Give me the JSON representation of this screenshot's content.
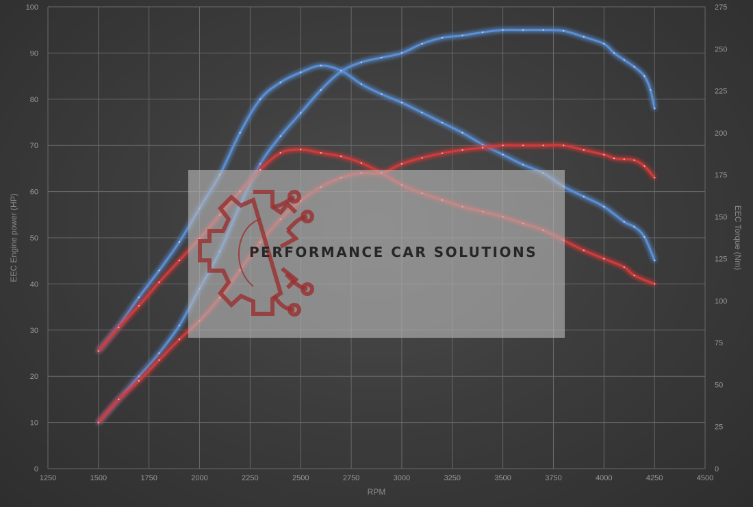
{
  "chart_data": {
    "type": "line",
    "xlabel": "RPM",
    "y1label": "EEC Engine power (HP)",
    "y2label": "EEC Torque (Nm)",
    "xlim": [
      1250,
      4500
    ],
    "y1lim": [
      0,
      100
    ],
    "y2lim": [
      0,
      275
    ],
    "x_ticks": [
      1250,
      1500,
      1750,
      2000,
      2250,
      2500,
      2750,
      3000,
      3250,
      3500,
      3750,
      4000,
      4250,
      4500
    ],
    "y1_ticks": [
      0,
      10,
      20,
      30,
      40,
      50,
      60,
      70,
      80,
      90,
      100
    ],
    "y2_ticks": [
      0,
      25,
      50,
      75,
      100,
      125,
      150,
      175,
      200,
      225,
      250,
      275
    ],
    "grid": true,
    "colors": {
      "tuned": "#5a8fd6",
      "stock": "#d23a3a"
    },
    "series": [
      {
        "axis": "left",
        "color": "#5a8fd6",
        "points": [
          [
            1500,
            10
          ],
          [
            1600,
            15
          ],
          [
            1700,
            20
          ],
          [
            1800,
            25
          ],
          [
            1900,
            31
          ],
          [
            2000,
            39
          ],
          [
            2100,
            47
          ],
          [
            2200,
            57
          ],
          [
            2300,
            66
          ],
          [
            2400,
            72
          ],
          [
            2500,
            77
          ],
          [
            2600,
            82
          ],
          [
            2700,
            86
          ],
          [
            2800,
            88
          ],
          [
            2900,
            89
          ],
          [
            3000,
            90
          ],
          [
            3100,
            92
          ],
          [
            3200,
            93.3
          ],
          [
            3300,
            93.8
          ],
          [
            3400,
            94.5
          ],
          [
            3500,
            95
          ],
          [
            3600,
            95
          ],
          [
            3700,
            95
          ],
          [
            3800,
            94.8
          ],
          [
            3900,
            93.5
          ],
          [
            4000,
            92
          ],
          [
            4050,
            90
          ],
          [
            4100,
            88.5
          ],
          [
            4150,
            87
          ],
          [
            4200,
            85
          ],
          [
            4230,
            82
          ],
          [
            4250,
            78
          ]
        ]
      },
      {
        "axis": "right",
        "color": "#5a8fd6",
        "points": [
          [
            1500,
            70
          ],
          [
            1600,
            85
          ],
          [
            1700,
            102
          ],
          [
            1800,
            118
          ],
          [
            1900,
            135
          ],
          [
            2000,
            155
          ],
          [
            2100,
            175
          ],
          [
            2200,
            200
          ],
          [
            2300,
            220
          ],
          [
            2400,
            230
          ],
          [
            2500,
            236
          ],
          [
            2600,
            240
          ],
          [
            2700,
            237
          ],
          [
            2800,
            229
          ],
          [
            2900,
            223
          ],
          [
            3000,
            218
          ],
          [
            3100,
            212
          ],
          [
            3200,
            206
          ],
          [
            3300,
            200
          ],
          [
            3400,
            193
          ],
          [
            3500,
            187
          ],
          [
            3600,
            181
          ],
          [
            3700,
            176
          ],
          [
            3800,
            168
          ],
          [
            3900,
            162
          ],
          [
            4000,
            156
          ],
          [
            4100,
            147
          ],
          [
            4150,
            144
          ],
          [
            4200,
            138
          ],
          [
            4250,
            124
          ]
        ]
      },
      {
        "axis": "left",
        "color": "#d23a3a",
        "points": [
          [
            1500,
            10
          ],
          [
            1600,
            15
          ],
          [
            1700,
            19
          ],
          [
            1800,
            23.5
          ],
          [
            1900,
            28
          ],
          [
            2000,
            32
          ],
          [
            2100,
            37
          ],
          [
            2200,
            43
          ],
          [
            2300,
            49
          ],
          [
            2400,
            54
          ],
          [
            2500,
            58
          ],
          [
            2600,
            61
          ],
          [
            2700,
            63
          ],
          [
            2800,
            64
          ],
          [
            2900,
            64
          ],
          [
            3000,
            66
          ],
          [
            3100,
            67.3
          ],
          [
            3200,
            68.3
          ],
          [
            3300,
            69
          ],
          [
            3400,
            69.5
          ],
          [
            3500,
            70
          ],
          [
            3600,
            70
          ],
          [
            3700,
            70
          ],
          [
            3800,
            70
          ],
          [
            3900,
            69
          ],
          [
            4000,
            68
          ],
          [
            4050,
            67.2
          ],
          [
            4100,
            67
          ],
          [
            4150,
            66.8
          ],
          [
            4200,
            65.5
          ],
          [
            4250,
            63
          ]
        ]
      },
      {
        "axis": "right",
        "color": "#d23a3a",
        "points": [
          [
            1500,
            70
          ],
          [
            1600,
            84
          ],
          [
            1700,
            97
          ],
          [
            1800,
            111
          ],
          [
            1900,
            124
          ],
          [
            2000,
            137
          ],
          [
            2100,
            151
          ],
          [
            2200,
            165
          ],
          [
            2300,
            178
          ],
          [
            2400,
            188
          ],
          [
            2500,
            190
          ],
          [
            2600,
            188
          ],
          [
            2700,
            186
          ],
          [
            2800,
            182
          ],
          [
            2900,
            176
          ],
          [
            3000,
            169
          ],
          [
            3100,
            164
          ],
          [
            3200,
            160
          ],
          [
            3300,
            156
          ],
          [
            3400,
            153
          ],
          [
            3500,
            150
          ],
          [
            3600,
            146
          ],
          [
            3700,
            142
          ],
          [
            3800,
            136
          ],
          [
            3900,
            130
          ],
          [
            4000,
            125
          ],
          [
            4100,
            120
          ],
          [
            4150,
            115
          ],
          [
            4250,
            110
          ]
        ]
      }
    ]
  },
  "watermark": {
    "text": "PERFORMANCE CAR SOLUTIONS",
    "logo": "gear-circuit-logo"
  }
}
